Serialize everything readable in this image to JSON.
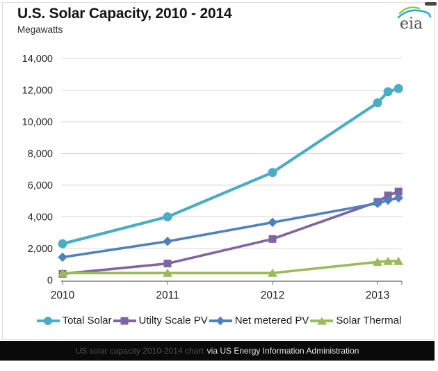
{
  "header": {
    "title": "U.S. Solar Capacity, 2010 - 2014",
    "subtitle": "Megawatts"
  },
  "logo": {
    "text": "eia",
    "text_color": "#4d4d4d",
    "arc_green": "#8dc63f",
    "arc_blue": "#27aae1"
  },
  "chart_data": {
    "type": "line",
    "title": "U.S. Solar Capacity, 2010 - 2014",
    "ylabel": "Megawatts",
    "ylim": [
      0,
      14000
    ],
    "ytick_step": 2000,
    "ytick_labels": [
      "0",
      "2,000",
      "4,000",
      "6,000",
      "8,000",
      "10,000",
      "12,000",
      "14,000"
    ],
    "x_tick_labels": [
      "2010",
      "2011",
      "2012",
      "2013"
    ],
    "x_tick_positions": [
      0,
      1,
      2,
      3
    ],
    "x_offsets_years": [
      0,
      1,
      2,
      3,
      3.1,
      3.2
    ],
    "grid": "horizontal",
    "legend_position": "bottom",
    "axis_color": "#7f7f7f",
    "gridline_color": "#d9d9d9",
    "series": [
      {
        "name": "Total Solar",
        "marker": "circle",
        "color": "#4bacc6",
        "values": [
          2300,
          4000,
          6800,
          11200,
          11900,
          12100
        ]
      },
      {
        "name": "Utilty Scale PV",
        "marker": "square",
        "color": "#8064a2",
        "values": [
          400,
          1050,
          2600,
          4950,
          5350,
          5600
        ]
      },
      {
        "name": "Net metered PV",
        "marker": "diamond",
        "color": "#4f81bd",
        "values": [
          1450,
          2450,
          3650,
          4850,
          5050,
          5200
        ]
      },
      {
        "name": "Solar Thermal",
        "marker": "triangle",
        "color": "#9bbb59",
        "values": [
          450,
          450,
          450,
          1150,
          1200,
          1200
        ]
      }
    ]
  },
  "footer": {
    "credit_link": "US solar capacity 2010-2014 chart",
    "credit_suffix": "via US Energy Information Administration"
  }
}
